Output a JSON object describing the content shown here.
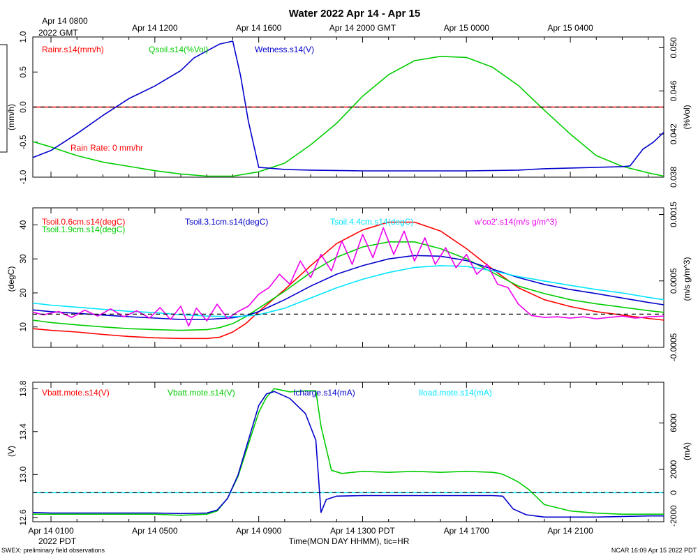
{
  "title": "Water 2022 Apr 14 - Apr 15",
  "top_axis": {
    "ticks": [
      {
        "x": 0,
        "label": "Apr 14 0800"
      },
      {
        "x": 4,
        "label": "Apr 14 1200"
      },
      {
        "x": 8,
        "label": "Apr 14 1600"
      },
      {
        "x": 12,
        "label": "Apr 14 2000 GMT"
      },
      {
        "x": 16,
        "label": "Apr 15 0000"
      },
      {
        "x": 20,
        "label": "Apr 15 0400"
      }
    ],
    "year_label": "2022 GMT"
  },
  "bottom_axis": {
    "ticks": [
      {
        "x": 0,
        "label": "Apr 14 0100"
      },
      {
        "x": 4,
        "label": "Apr 14 0500"
      },
      {
        "x": 8,
        "label": "Apr 14 0900"
      },
      {
        "x": 12,
        "label": "Apr 14 1300 PDT"
      },
      {
        "x": 16,
        "label": "Apr 14 1700"
      },
      {
        "x": 20,
        "label": "Apr 14 2100"
      }
    ],
    "year_label": "2022 PDT",
    "title": "Time(MON DAY HHMM), tic=HR"
  },
  "footer": {
    "left": "SWEX: preliminary field observations",
    "right": "NCAR 16:09 Apr 15 2022 PDT"
  },
  "colors": {
    "red": "#ff0000",
    "green": "#00cc00",
    "blue": "#0000cc",
    "cyan": "#00e5ff",
    "magenta": "#ee00ee"
  },
  "chart_data": [
    {
      "type": "line",
      "ylabel_left": "(mm/h)",
      "ylabel_right": "(%Vol)",
      "ylim_left": [
        -1.0,
        1.0
      ],
      "ylim_right": [
        0.038,
        0.051
      ],
      "yticks_left": [
        "1.0",
        "0.5",
        "0.0",
        "-0.5",
        "-1.0"
      ],
      "yticks_right": [
        "0.050",
        "0.046",
        "0.042",
        "0.038"
      ],
      "xlim": [
        -0.7,
        23.6
      ],
      "zero_line_left": 0.0,
      "legend": [
        {
          "text": "Rainr.s14(mm/h)",
          "color": "red"
        },
        {
          "text": "Qsoil.s14(%Vol)",
          "color": "green"
        },
        {
          "text": "Wetness.s14(V)",
          "color": "blue"
        }
      ],
      "annotation": {
        "text": "Rain Rate: 0 mm/hr",
        "color": "red"
      },
      "series": [
        {
          "name": "Rainr.s14",
          "color": "red",
          "axis": "left",
          "x": [
            -0.7,
            23.6
          ],
          "y": [
            0,
            0
          ]
        },
        {
          "name": "Qsoil.s14",
          "color": "green",
          "axis": "right",
          "x": [
            -0.7,
            0,
            1,
            2,
            3,
            4,
            5,
            6,
            7,
            8,
            9,
            10,
            11,
            12,
            13,
            14,
            15,
            16,
            17,
            18,
            19,
            20,
            21,
            22,
            23,
            23.6
          ],
          "y": [
            0.0413,
            0.0408,
            0.04,
            0.0394,
            0.039,
            0.0386,
            0.0383,
            0.0381,
            0.0381,
            0.0385,
            0.0393,
            0.041,
            0.043,
            0.0455,
            0.0475,
            0.0488,
            0.0492,
            0.0491,
            0.0482,
            0.0465,
            0.0442,
            0.042,
            0.04,
            0.039,
            0.0384,
            0.0381
          ]
        },
        {
          "name": "Wetness.s14",
          "color": "blue",
          "axis": "left",
          "x": [
            -0.7,
            0,
            1,
            2,
            3,
            4,
            5,
            5.5,
            6,
            6.5,
            7,
            7.3,
            7.6,
            8,
            9,
            10,
            12,
            14,
            16,
            18,
            19,
            20,
            21,
            22,
            22.3,
            22.8,
            23.2,
            23.6
          ],
          "y": [
            -0.72,
            -0.62,
            -0.38,
            -0.12,
            0.12,
            0.3,
            0.52,
            0.7,
            0.8,
            0.9,
            0.94,
            0.45,
            -0.2,
            -0.86,
            -0.89,
            -0.9,
            -0.91,
            -0.91,
            -0.91,
            -0.9,
            -0.88,
            -0.87,
            -0.86,
            -0.85,
            -0.84,
            -0.6,
            -0.5,
            -0.36
          ]
        }
      ]
    },
    {
      "type": "line",
      "ylabel_left": "(degC)",
      "ylabel_right": "(m/s g/m^3)",
      "ylim_left": [
        4,
        45
      ],
      "ylim_right": [
        -0.0005,
        0.0016
      ],
      "yticks_left": [
        "40",
        "30",
        "20",
        "10"
      ],
      "yticks_right": [
        "0.0015",
        "0.0005",
        "-0.0005"
      ],
      "xlim": [
        -0.7,
        23.6
      ],
      "zero_line_right": 0.0,
      "legend": [
        {
          "text": "Tsoil.0.6cm.s14(degC)",
          "color": "red"
        },
        {
          "text": "Tsoil.1.9cm.s14(degC)",
          "color": "green"
        },
        {
          "text": "Tsoil.3.1cm.s14(degC)",
          "color": "blue"
        },
        {
          "text": "Tsoil.4.4cm.s14(degC)",
          "color": "cyan"
        },
        {
          "text": "w'co2'.s14(m/s g/m^3)",
          "color": "magenta"
        }
      ],
      "series": [
        {
          "name": "Tsoil.0.6cm.s14",
          "color": "red",
          "axis": "left",
          "x": [
            -0.7,
            0,
            1,
            2,
            3,
            4,
            5,
            6,
            6.5,
            7,
            7.5,
            8,
            9,
            10,
            11,
            12,
            13,
            14,
            15,
            16,
            17,
            18,
            19,
            20,
            21,
            22,
            23,
            23.6
          ],
          "y": [
            9.5,
            9.0,
            8.5,
            7.8,
            7.2,
            6.8,
            6.6,
            6.6,
            7.0,
            8.5,
            11.0,
            14.5,
            21.0,
            28.0,
            34.5,
            38.5,
            40.8,
            40.8,
            38.2,
            33.0,
            27.0,
            21.5,
            18.0,
            16.0,
            14.5,
            13.5,
            12.5,
            12.0
          ]
        },
        {
          "name": "Tsoil.1.9cm.s14",
          "color": "green",
          "axis": "left",
          "x": [
            -0.7,
            0,
            1,
            2,
            3,
            4,
            5,
            6,
            6.5,
            7,
            7.5,
            8,
            9,
            10,
            11,
            12,
            13,
            14,
            15,
            16,
            17,
            18,
            19,
            20,
            21,
            22,
            23,
            23.6
          ],
          "y": [
            12.0,
            11.3,
            10.6,
            10.0,
            9.5,
            9.2,
            9.0,
            9.2,
            9.8,
            11.0,
            13.0,
            15.5,
            20.5,
            26.0,
            30.5,
            33.5,
            35.0,
            35.0,
            33.0,
            30.0,
            26.0,
            22.0,
            19.8,
            18.0,
            16.8,
            15.8,
            14.8,
            14.3
          ]
        },
        {
          "name": "Tsoil.3.1cm.s14",
          "color": "blue",
          "axis": "left",
          "x": [
            -0.7,
            0,
            1,
            2,
            3,
            4,
            5,
            6,
            7,
            7.5,
            8,
            9,
            10,
            11,
            12,
            13,
            14,
            15,
            16,
            17,
            18,
            19,
            20,
            21,
            22,
            23,
            23.6
          ],
          "y": [
            15.0,
            14.5,
            14.0,
            13.5,
            13.0,
            12.6,
            12.2,
            12.2,
            12.7,
            13.3,
            14.5,
            18.0,
            22.0,
            25.5,
            28.0,
            30.0,
            31.0,
            30.8,
            29.5,
            27.0,
            24.5,
            22.5,
            21.0,
            19.8,
            18.5,
            17.2,
            16.5
          ]
        },
        {
          "name": "Tsoil.4.4cm.s14",
          "color": "cyan",
          "axis": "left",
          "x": [
            -0.7,
            0,
            1,
            2,
            3,
            4,
            5,
            6,
            7,
            7.5,
            8,
            9,
            10,
            11,
            12,
            13,
            14,
            15,
            16,
            17,
            18,
            19,
            20,
            21,
            22,
            23,
            23.6
          ],
          "y": [
            17.0,
            16.4,
            15.8,
            15.2,
            14.6,
            14.2,
            13.6,
            13.2,
            13.0,
            13.2,
            13.6,
            15.5,
            18.5,
            21.5,
            24.0,
            26.0,
            27.5,
            28.0,
            27.8,
            26.5,
            24.8,
            23.5,
            22.2,
            21.0,
            20.0,
            18.7,
            18.0
          ]
        },
        {
          "name": "w'co2'.s14",
          "color": "magenta",
          "axis": "right",
          "x": [
            -0.7,
            -0.3,
            0.3,
            0.8,
            1.3,
            1.8,
            2.3,
            2.8,
            3.3,
            3.8,
            4.2,
            4.6,
            5.0,
            5.3,
            5.6,
            6.0,
            6.4,
            6.8,
            7.2,
            7.6,
            8.0,
            8.4,
            8.8,
            9.2,
            9.6,
            10.0,
            10.4,
            10.8,
            11.2,
            11.6,
            12.0,
            12.4,
            12.8,
            13.2,
            13.6,
            14.0,
            14.4,
            14.8,
            15.2,
            15.6,
            16.0,
            16.4,
            16.8,
            17.2,
            17.6,
            18.0,
            18.5,
            19.0,
            19.5,
            20.0,
            20.5,
            21.0,
            21.5,
            22.0,
            22.5,
            23.0,
            23.6
          ],
          "y": [
            3e-05,
            -1e-05,
            4e-05,
            -5e-05,
            6e-05,
            -3e-05,
            8e-05,
            -4e-05,
            5e-05,
            -6e-05,
            0.0001,
            -8e-05,
            0.00012,
            -0.00018,
            9e-05,
            -0.0001,
            0.00015,
            -7e-05,
            4e-05,
            0.00012,
            0.0003,
            0.0004,
            0.0006,
            0.00045,
            0.0008,
            0.00055,
            0.0009,
            0.00065,
            0.0011,
            0.00075,
            0.0012,
            0.00085,
            0.0013,
            0.0009,
            0.00125,
            0.0008,
            0.00115,
            0.00075,
            0.001,
            0.0007,
            0.0009,
            0.0006,
            0.00075,
            0.00045,
            0.0004,
            0.00015,
            -2e-05,
            -5e-05,
            -4e-05,
            -6e-05,
            -4e-05,
            -7e-05,
            -5e-05,
            -3e-05,
            -6e-05,
            -4e-05,
            -3e-05
          ]
        }
      ]
    },
    {
      "type": "line",
      "ylabel_left": "(V)",
      "ylabel_right": "(mA)",
      "ylim_left": [
        12.56,
        13.86
      ],
      "ylim_right": [
        -2500,
        9500
      ],
      "yticks_left": [
        "13.8",
        "13.4",
        "13.0",
        "12.6"
      ],
      "yticks_right": [
        "6000",
        "2000",
        "0",
        "-2000"
      ],
      "xlim": [
        -0.7,
        23.6
      ],
      "zero_line_right": 0,
      "legend": [
        {
          "text": "Vbatt.mote.s14(V)",
          "color": "red"
        },
        {
          "text": "Vbatt.mote.s14(V)",
          "color": "green"
        },
        {
          "text": "Icharge.s14(mA)",
          "color": "blue"
        },
        {
          "text": "Iload.mote.s14(mA)",
          "color": "cyan"
        }
      ],
      "series": [
        {
          "name": "Iload.mote.s14",
          "color": "cyan",
          "axis": "right",
          "x": [
            -0.7,
            23.6
          ],
          "y": [
            0,
            0
          ]
        },
        {
          "name": "Vbatt.mote.s14",
          "color": "green",
          "axis": "left",
          "x": [
            -0.7,
            0,
            2,
            4,
            5,
            6,
            6.4,
            6.8,
            7.2,
            7.6,
            8.0,
            8.3,
            8.6,
            9.2,
            9.8,
            10.2,
            10.4,
            10.8,
            11.2,
            12,
            13,
            14,
            15,
            16,
            17,
            17.3,
            17.6,
            18.0,
            18.4,
            19.0,
            20,
            21,
            22,
            23,
            23.6
          ],
          "y": [
            12.63,
            12.63,
            12.63,
            12.63,
            12.62,
            12.63,
            12.66,
            12.78,
            12.98,
            13.28,
            13.58,
            13.72,
            13.8,
            13.77,
            13.78,
            13.78,
            13.45,
            13.04,
            13.01,
            13.03,
            13.02,
            13.03,
            13.02,
            13.03,
            13.02,
            13.01,
            12.98,
            12.93,
            12.86,
            12.72,
            12.66,
            12.64,
            12.63,
            12.63,
            12.63
          ]
        },
        {
          "name": "Icharge.s14",
          "color": "blue",
          "axis": "right",
          "x": [
            -0.7,
            0,
            2,
            4,
            5,
            6,
            6.4,
            6.8,
            7.2,
            7.6,
            8.0,
            8.3,
            8.6,
            9.2,
            9.8,
            10.2,
            10.4,
            10.6,
            11.0,
            12,
            13,
            14,
            15,
            16,
            17,
            17.4,
            17.8,
            18.3,
            19,
            20,
            21,
            22,
            23,
            23.6
          ],
          "y": [
            -1700,
            -1750,
            -1750,
            -1750,
            -1800,
            -1750,
            -1500,
            -500,
            1500,
            4500,
            7500,
            8500,
            8700,
            8100,
            6800,
            4500,
            -1700,
            -600,
            -300,
            -250,
            -250,
            -250,
            -250,
            -250,
            -250,
            -300,
            -1400,
            -1900,
            -2100,
            -2100,
            -2100,
            -2050,
            -2000,
            -2000
          ]
        }
      ]
    }
  ]
}
